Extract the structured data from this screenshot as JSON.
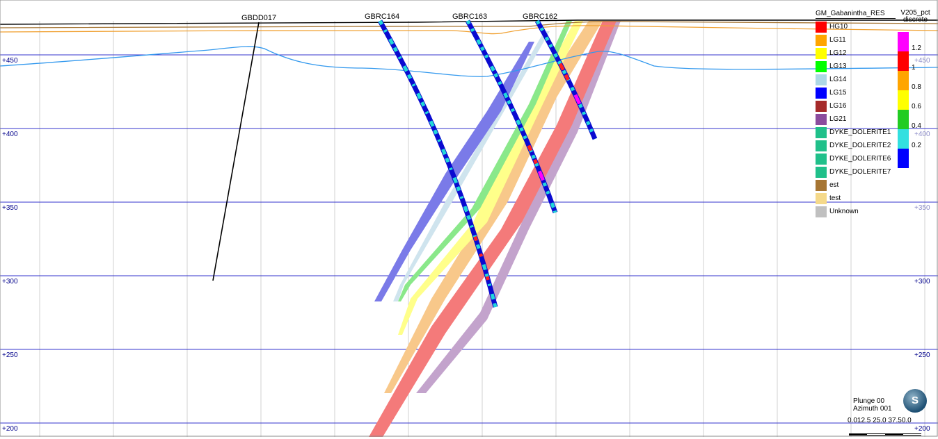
{
  "elevations": [
    "+450",
    "+400",
    "+350",
    "+300",
    "+250",
    "+200"
  ],
  "holes": {
    "gbdd017": "GBDD017",
    "gbrc164": "GBRC164",
    "gbrc163": "GBRC163",
    "gbrc162": "GBRC162"
  },
  "legend": {
    "title": "GM_Gabanintha_RES",
    "items": [
      {
        "label": "HG10",
        "color": "#ff0000"
      },
      {
        "label": "LG11",
        "color": "#ffa500"
      },
      {
        "label": "LG12",
        "color": "#ffff00"
      },
      {
        "label": "LG13",
        "color": "#00ff00"
      },
      {
        "label": "LG14",
        "color": "#add8e6"
      },
      {
        "label": "LG15",
        "color": "#0000ff"
      },
      {
        "label": "LG16",
        "color": "#a52a2a"
      },
      {
        "label": "LG21",
        "color": "#8b4c9e"
      },
      {
        "label": "DYKE_DOLERITE1",
        "color": "#20c08a"
      },
      {
        "label": "DYKE_DOLERITE2",
        "color": "#20c08a"
      },
      {
        "label": "DYKE_DOLERITE6",
        "color": "#20c08a"
      },
      {
        "label": "DYKE_DOLERITE7",
        "color": "#20c08a"
      },
      {
        "label": "est",
        "color": "#a67533"
      },
      {
        "label": "test",
        "color": "#f5d98a"
      },
      {
        "label": "Unknown",
        "color": "#c0c0c0"
      }
    ]
  },
  "v205_legend": {
    "title": "V205_pct",
    "subtitle": "discrete",
    "ticks": [
      "1.2",
      "1",
      "0.8",
      "0.6",
      "0.4",
      "0.2"
    ],
    "colors": [
      "#ff00ff",
      "#ff0000",
      "#ffa500",
      "#ffff00",
      "#22cc22",
      "#33e0e0",
      "#0000ff"
    ]
  },
  "orientation": {
    "plunge": "Plunge 00",
    "azimuth": "Azimuth 001",
    "compass": "S",
    "scale": "0.012.5  25.0  37.50.0"
  }
}
